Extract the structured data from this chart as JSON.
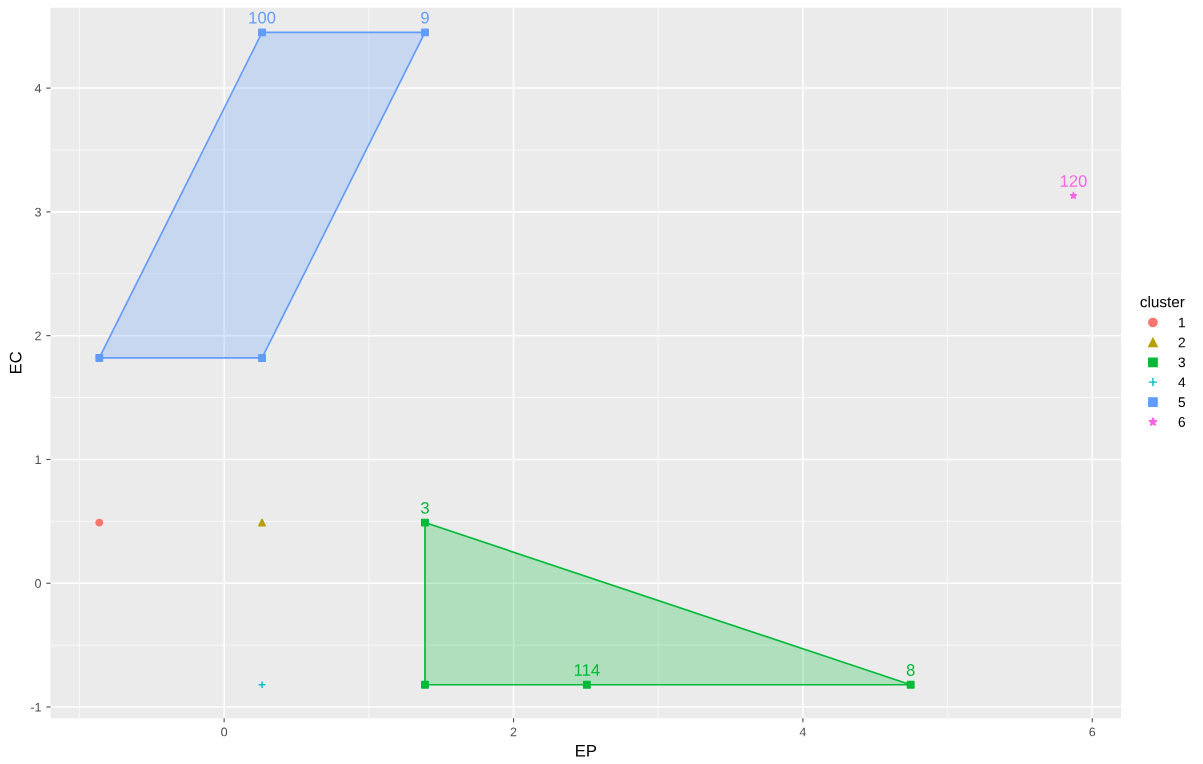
{
  "chart_data": {
    "type": "scatter",
    "xlabel": "EP",
    "ylabel": "EC",
    "legend_title": "cluster",
    "legend": "right",
    "xlim": [
      -1.2,
      6.2
    ],
    "ylim": [
      -1.09,
      4.65
    ],
    "xticks": [
      0,
      2,
      4,
      6
    ],
    "yticks": [
      -1,
      0,
      1,
      2,
      3,
      4
    ],
    "grid": true,
    "series": [
      {
        "name": "1",
        "color": "#f8766d",
        "marker": "circle",
        "x": [
          -0.863
        ],
        "values": [
          0.49
        ]
      },
      {
        "name": "2",
        "color": "#b79f00",
        "marker": "triangle",
        "x": [
          0.262
        ],
        "values": [
          0.49
        ]
      },
      {
        "name": "3",
        "color": "#00ba38",
        "marker": "square",
        "x": [
          1.388,
          1.388,
          2.507,
          4.745
        ],
        "values": [
          0.49,
          -0.82,
          -0.82,
          -0.82
        ]
      },
      {
        "name": "4",
        "color": "#00bfc4",
        "marker": "cross",
        "x": [
          0.262
        ],
        "values": [
          -0.82
        ]
      },
      {
        "name": "5",
        "color": "#619cff",
        "marker": "square",
        "x": [
          -0.863,
          0.262,
          0.262,
          1.388
        ],
        "values": [
          1.82,
          1.82,
          4.45,
          4.45
        ]
      },
      {
        "name": "6",
        "color": "#f564e3",
        "marker": "star",
        "x": [
          5.87
        ],
        "values": [
          3.13
        ]
      },
      {
        "type": "area",
        "color": "#00ba38",
        "x": [
          1.388,
          4.745,
          1.388,
          1.388
        ],
        "values": [
          0.49,
          -0.82,
          -0.82,
          0.49
        ]
      },
      {
        "type": "area",
        "color": "#619cff",
        "x": [
          -0.863,
          0.262,
          1.388,
          0.262,
          -0.863
        ],
        "values": [
          1.82,
          4.45,
          4.45,
          1.82,
          1.82
        ]
      }
    ],
    "annotations": [
      {
        "text": "3",
        "x": 1.388,
        "y": 0.49
      },
      {
        "text": "114",
        "x": 2.507,
        "y": -0.82
      },
      {
        "text": "8",
        "x": 4.745,
        "y": -0.82
      },
      {
        "text": "100",
        "x": 0.262,
        "y": 4.45
      },
      {
        "text": "9",
        "x": 1.388,
        "y": 4.45
      },
      {
        "text": "120",
        "x": 5.87,
        "y": 3.13
      }
    ]
  }
}
